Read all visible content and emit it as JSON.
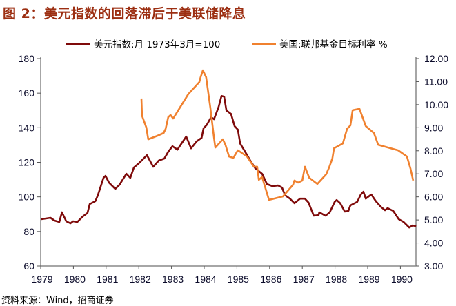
{
  "title": "图 2：美元指数的回落滞后于美联储降息",
  "source": "资料来源：Wind，招商证券",
  "chart_data": {
    "type": "line",
    "title": "图 2：美元指数的回落滞后于美联储降息",
    "legend_position": "top",
    "x_ticks": [
      "1979",
      "1980",
      "1981",
      "1982",
      "1983",
      "1984",
      "1985",
      "1986",
      "1987",
      "1988",
      "1989",
      "1990"
    ],
    "xlim": [
      1979,
      1990.48
    ],
    "y_left": {
      "ylim": [
        60,
        180
      ],
      "ticks": [
        "60",
        "80",
        "100",
        "120",
        "140",
        "160",
        "180"
      ]
    },
    "y_right": {
      "ylim": [
        3,
        12
      ],
      "ticks": [
        "3.00",
        "4.00",
        "5.00",
        "6.00",
        "7.00",
        "8.00",
        "9.00",
        "10.00",
        "11.00",
        "12.00"
      ]
    },
    "grid": false,
    "series": [
      {
        "name": "美元指数:月 1973年3月=100",
        "axis": "left",
        "color": "#7f0a0a",
        "x": [
          1979.02,
          1979.3,
          1979.42,
          1979.57,
          1979.65,
          1979.78,
          1979.91,
          1979.99,
          1980.12,
          1980.29,
          1980.43,
          1980.5,
          1980.67,
          1980.75,
          1980.92,
          1980.98,
          1981.09,
          1981.28,
          1981.41,
          1981.62,
          1981.74,
          1981.85,
          1982.0,
          1982.25,
          1982.44,
          1982.61,
          1982.78,
          1982.9,
          1983.03,
          1983.18,
          1983.45,
          1983.6,
          1983.77,
          1983.92,
          1983.98,
          1984.08,
          1984.21,
          1984.3,
          1984.44,
          1984.53,
          1984.61,
          1984.68,
          1984.82,
          1984.93,
          1985.03,
          1985.1,
          1985.29,
          1985.41,
          1985.56,
          1985.77,
          1985.92,
          1986.09,
          1986.26,
          1986.38,
          1986.47,
          1986.62,
          1986.76,
          1986.93,
          1987.08,
          1987.19,
          1987.35,
          1987.5,
          1987.52,
          1987.71,
          1987.84,
          1987.99,
          1988.05,
          1988.16,
          1988.3,
          1988.41,
          1988.47,
          1988.68,
          1988.79,
          1988.87,
          1988.94,
          1989.11,
          1989.25,
          1989.4,
          1989.53,
          1989.61,
          1989.78,
          1989.95,
          1990.1,
          1990.27,
          1990.37,
          1990.48
        ],
        "y": [
          87.1,
          87.9,
          86.3,
          85.5,
          91.1,
          85.9,
          84.7,
          85.9,
          85.5,
          88.7,
          90.7,
          95.9,
          97.5,
          101.0,
          111.0,
          112.2,
          108.2,
          104.6,
          107.0,
          113.4,
          111.0,
          117.0,
          119.4,
          124.1,
          117.4,
          121.0,
          122.2,
          126.1,
          129.3,
          127.3,
          134.9,
          128.1,
          132.1,
          134.1,
          139.7,
          141.7,
          146.1,
          144.9,
          152.0,
          158.4,
          158.0,
          150.0,
          148.0,
          140.9,
          138.9,
          130.9,
          124.9,
          121.0,
          116.6,
          113.4,
          107.4,
          106.2,
          106.6,
          105.4,
          101.0,
          99.0,
          96.3,
          99.0,
          99.0,
          96.7,
          89.1,
          89.5,
          91.1,
          89.1,
          91.1,
          97.1,
          98.2,
          96.3,
          91.5,
          91.9,
          95.1,
          97.1,
          101.4,
          103.0,
          99.0,
          101.4,
          97.5,
          94.3,
          92.3,
          93.5,
          91.9,
          87.1,
          85.5,
          82.3,
          83.5,
          83.1
        ]
      },
      {
        "name": "美国:联邦基金目标利率 %",
        "axis": "right",
        "color": "#f0812f",
        "x": [
          1982.08,
          1982.1,
          1982.23,
          1982.29,
          1982.57,
          1982.76,
          1982.82,
          1982.9,
          1982.97,
          1983.05,
          1983.51,
          1983.85,
          1983.89,
          1983.96,
          1984.06,
          1984.19,
          1984.3,
          1984.34,
          1984.57,
          1984.65,
          1984.76,
          1984.89,
          1985.03,
          1985.31,
          1985.52,
          1985.62,
          1985.67,
          1985.77,
          1985.98,
          1986.41,
          1986.72,
          1986.76,
          1986.87,
          1987.0,
          1987.08,
          1987.21,
          1987.46,
          1987.73,
          1987.82,
          1987.92,
          1987.97,
          1988.24,
          1988.37,
          1988.47,
          1988.54,
          1988.75,
          1988.94,
          1989.19,
          1989.32,
          1989.93,
          1990.2,
          1990.31,
          1990.39
        ],
        "y": [
          10.27,
          9.52,
          9.01,
          8.5,
          8.65,
          8.77,
          8.95,
          9.46,
          9.55,
          9.4,
          10.45,
          10.98,
          11.19,
          11.49,
          11.19,
          9.85,
          8.56,
          8.14,
          8.5,
          8.26,
          7.75,
          7.69,
          8.02,
          7.75,
          7.31,
          7.31,
          6.74,
          6.86,
          5.87,
          6.02,
          6.53,
          6.71,
          6.62,
          6.71,
          7.31,
          6.83,
          6.56,
          6.98,
          7.28,
          7.67,
          8.11,
          8.32,
          8.95,
          9.1,
          9.76,
          9.82,
          9.07,
          8.77,
          8.26,
          8.02,
          7.75,
          7.22,
          6.71
        ]
      }
    ]
  }
}
